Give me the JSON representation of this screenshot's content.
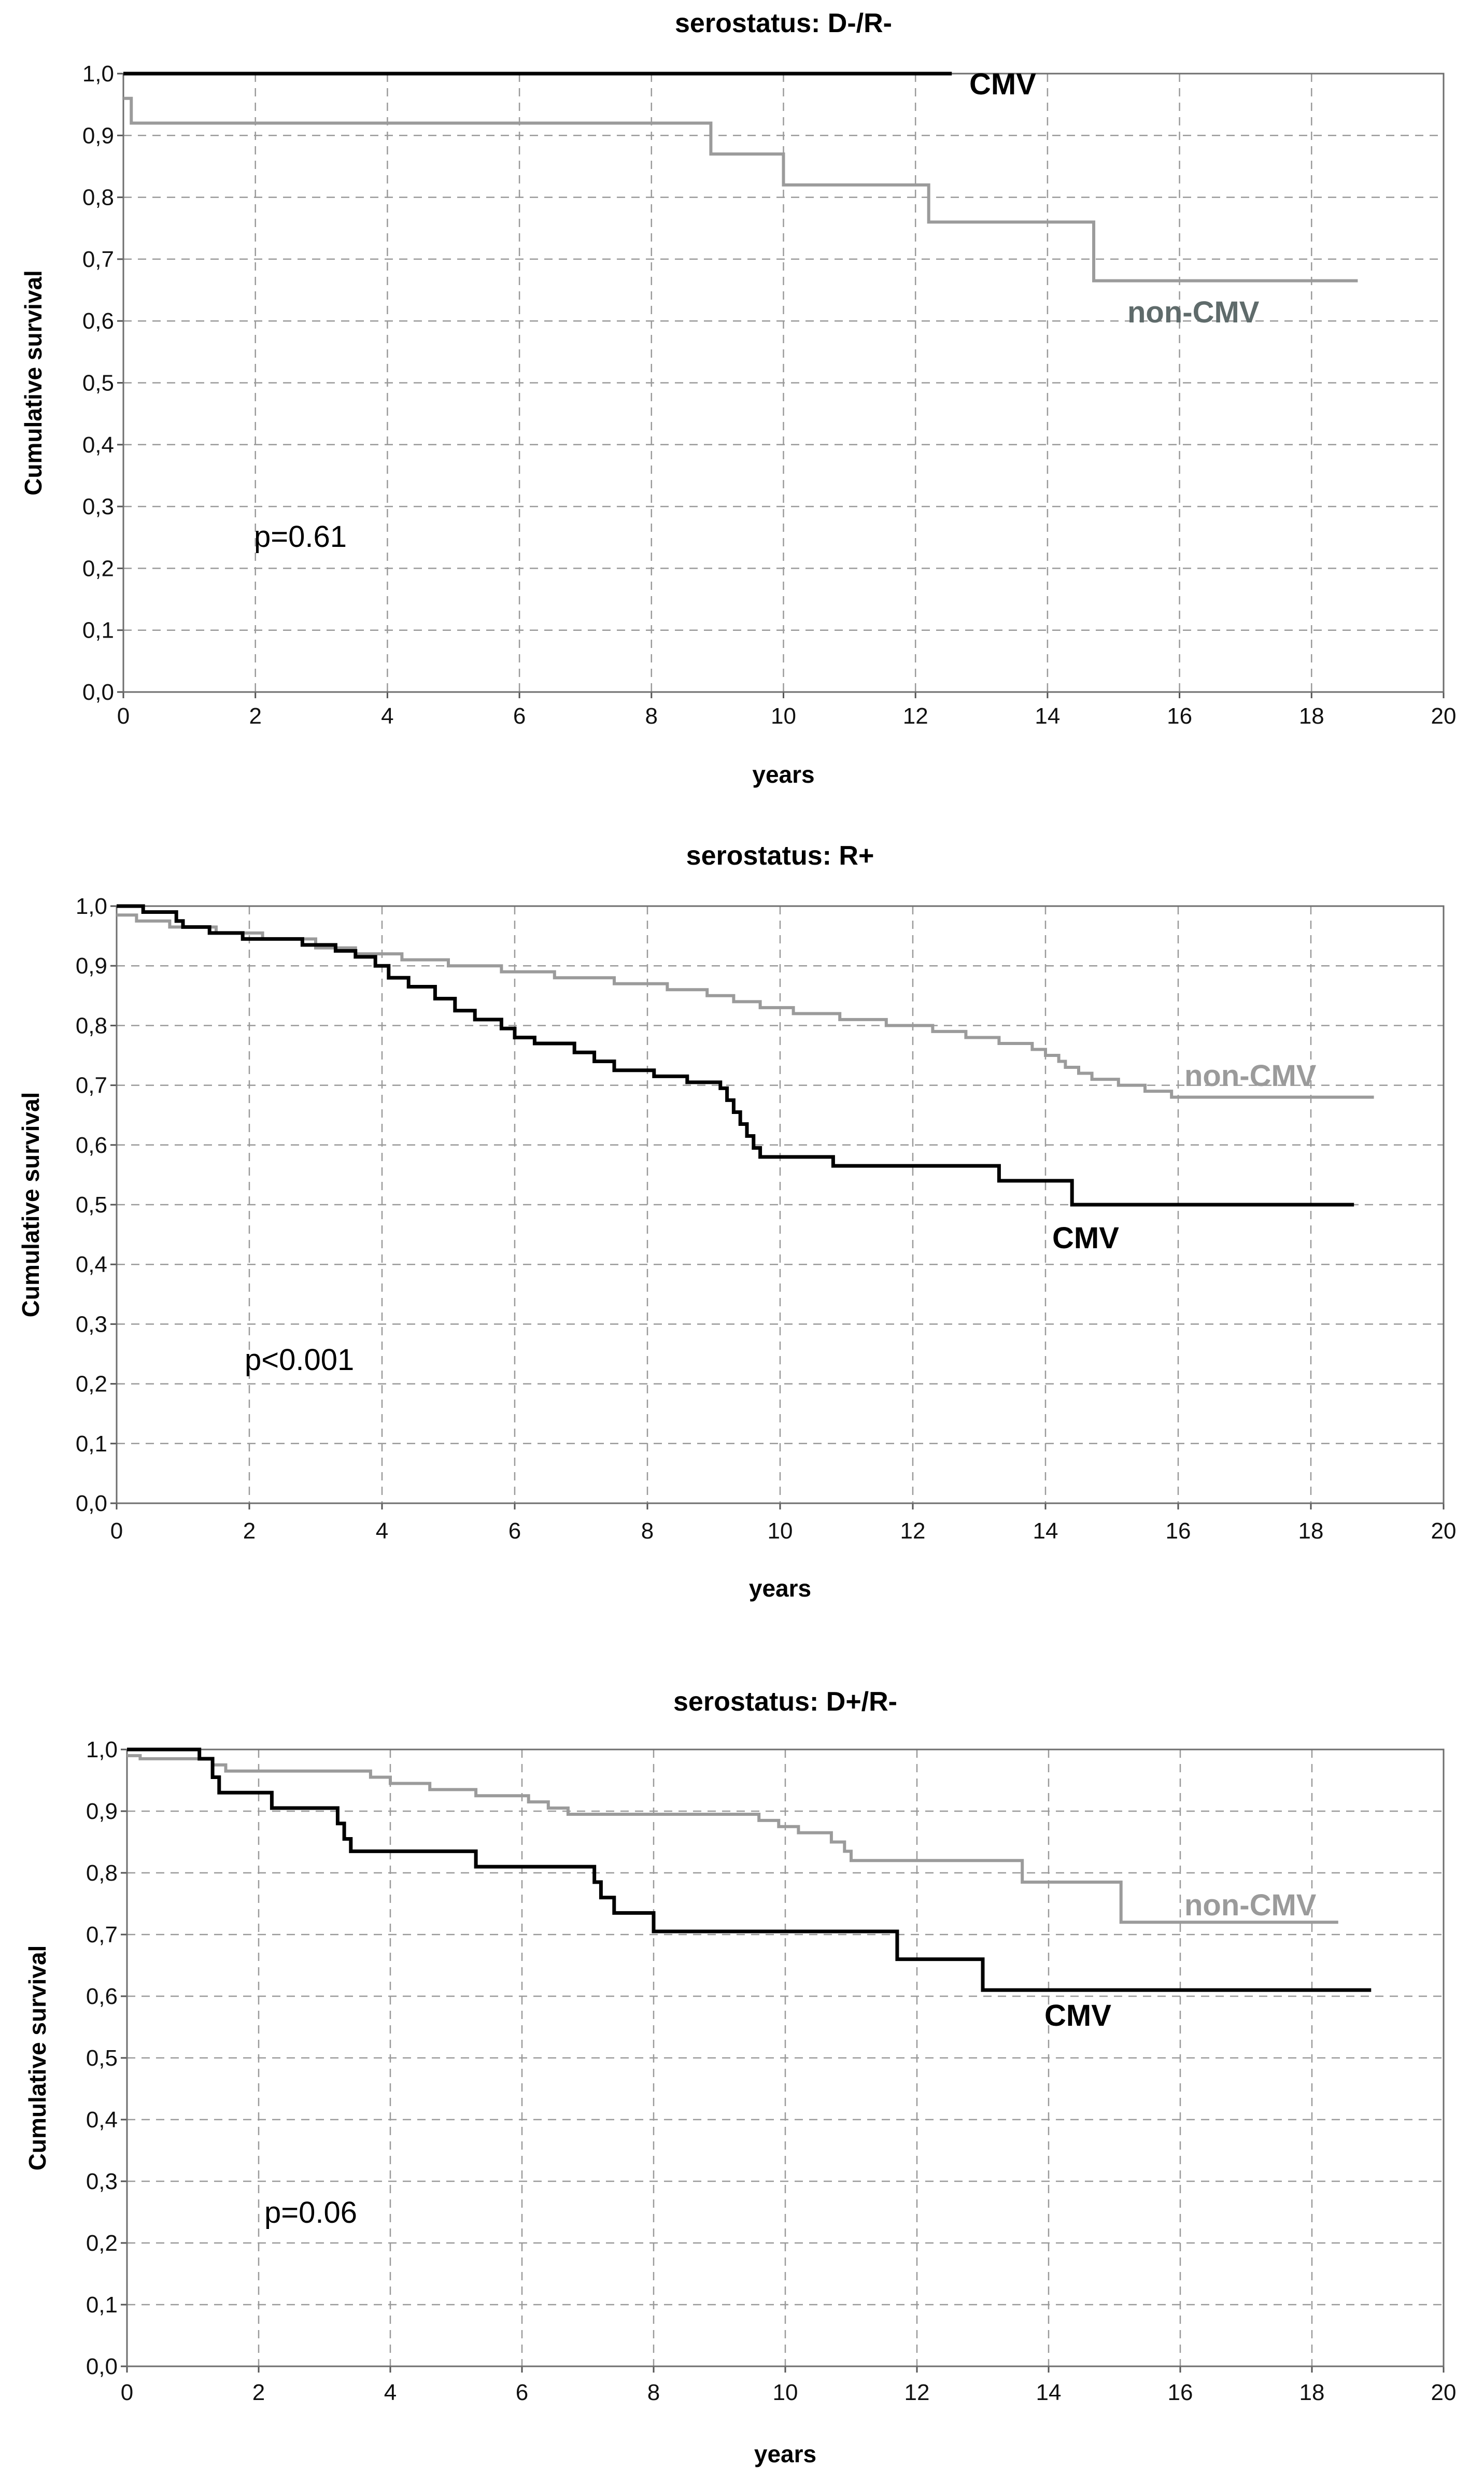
{
  "colors": {
    "cmv": "#000000",
    "non_cmv": "#9b9b9b",
    "non_cmv_label": "#5f6b6b"
  },
  "chart_data": [
    {
      "type": "line",
      "title": "serostatus: D-/R-",
      "xlabel": "years",
      "ylabel": "Cumulative survival",
      "xlim": [
        0,
        20
      ],
      "ylim": [
        0,
        1
      ],
      "x_ticks": [
        "0",
        "2",
        "4",
        "6",
        "8",
        "10",
        "12",
        "14",
        "16",
        "18",
        "20"
      ],
      "y_ticks": [
        "0,0",
        "0,1",
        "0,2",
        "0,3",
        "0,4",
        "0,5",
        "0,6",
        "0,7",
        "0,8",
        "0,9",
        "1,0"
      ],
      "annotation": "p=0.61",
      "series": [
        {
          "name": "CMV",
          "key": "cmv",
          "steps": [
            [
              0,
              1.0
            ],
            [
              12.55,
              1.0
            ]
          ]
        },
        {
          "name": "non-CMV",
          "key": "non_cmv",
          "steps": [
            [
              0,
              0.96
            ],
            [
              0.12,
              0.92
            ],
            [
              8.9,
              0.87
            ],
            [
              10.0,
              0.82
            ],
            [
              12.2,
              0.76
            ],
            [
              14.7,
              0.665
            ],
            [
              18.7,
              0.665
            ]
          ]
        }
      ]
    },
    {
      "type": "line",
      "title": "serostatus: R+",
      "xlabel": "years",
      "ylabel": "Cumulative survival",
      "xlim": [
        0,
        20
      ],
      "ylim": [
        0,
        1
      ],
      "x_ticks": [
        "0",
        "2",
        "4",
        "6",
        "8",
        "10",
        "12",
        "14",
        "16",
        "18",
        "20"
      ],
      "y_ticks": [
        "0,0",
        "0,1",
        "0,2",
        "0,3",
        "0,4",
        "0,5",
        "0,6",
        "0,7",
        "0,8",
        "0,9",
        "1,0"
      ],
      "annotation": "p<0.001",
      "series": [
        {
          "name": "non-CMV",
          "key": "non_cmv",
          "steps": [
            [
              0,
              0.985
            ],
            [
              0.3,
              0.975
            ],
            [
              0.8,
              0.965
            ],
            [
              1.5,
              0.955
            ],
            [
              2.2,
              0.945
            ],
            [
              3.0,
              0.93
            ],
            [
              3.6,
              0.92
            ],
            [
              4.3,
              0.91
            ],
            [
              5.0,
              0.9
            ],
            [
              5.8,
              0.89
            ],
            [
              6.6,
              0.88
            ],
            [
              7.5,
              0.87
            ],
            [
              8.3,
              0.86
            ],
            [
              8.9,
              0.85
            ],
            [
              9.3,
              0.84
            ],
            [
              9.7,
              0.83
            ],
            [
              10.2,
              0.82
            ],
            [
              10.9,
              0.81
            ],
            [
              11.6,
              0.8
            ],
            [
              12.3,
              0.79
            ],
            [
              12.8,
              0.78
            ],
            [
              13.3,
              0.77
            ],
            [
              13.8,
              0.76
            ],
            [
              14.0,
              0.75
            ],
            [
              14.2,
              0.74
            ],
            [
              14.3,
              0.73
            ],
            [
              14.5,
              0.72
            ],
            [
              14.7,
              0.71
            ],
            [
              15.1,
              0.7
            ],
            [
              15.5,
              0.69
            ],
            [
              15.9,
              0.68
            ],
            [
              18.95,
              0.68
            ]
          ]
        },
        {
          "name": "CMV",
          "key": "cmv",
          "steps": [
            [
              0,
              1.0
            ],
            [
              0.4,
              0.99
            ],
            [
              0.9,
              0.975
            ],
            [
              1.0,
              0.965
            ],
            [
              1.4,
              0.955
            ],
            [
              1.9,
              0.945
            ],
            [
              2.8,
              0.935
            ],
            [
              3.3,
              0.925
            ],
            [
              3.6,
              0.915
            ],
            [
              3.9,
              0.9
            ],
            [
              4.1,
              0.88
            ],
            [
              4.4,
              0.865
            ],
            [
              4.8,
              0.845
            ],
            [
              5.1,
              0.825
            ],
            [
              5.4,
              0.81
            ],
            [
              5.8,
              0.795
            ],
            [
              6.0,
              0.78
            ],
            [
              6.3,
              0.77
            ],
            [
              6.9,
              0.755
            ],
            [
              7.2,
              0.74
            ],
            [
              7.5,
              0.725
            ],
            [
              8.1,
              0.715
            ],
            [
              8.6,
              0.705
            ],
            [
              9.1,
              0.695
            ],
            [
              9.2,
              0.675
            ],
            [
              9.3,
              0.655
            ],
            [
              9.4,
              0.635
            ],
            [
              9.5,
              0.615
            ],
            [
              9.6,
              0.595
            ],
            [
              9.7,
              0.58
            ],
            [
              10.8,
              0.565
            ],
            [
              13.3,
              0.54
            ],
            [
              14.4,
              0.5
            ],
            [
              18.65,
              0.5
            ]
          ]
        }
      ]
    },
    {
      "type": "line",
      "title": "serostatus: D+/R-",
      "xlabel": "years",
      "ylabel": "Cumulative survival",
      "xlim": [
        0,
        20
      ],
      "ylim": [
        0,
        1
      ],
      "x_ticks": [
        "0",
        "2",
        "4",
        "6",
        "8",
        "10",
        "12",
        "14",
        "16",
        "18",
        "20"
      ],
      "y_ticks": [
        "0,0",
        "0,1",
        "0,2",
        "0,3",
        "0,4",
        "0,5",
        "0,6",
        "0,7",
        "0,8",
        "0,9",
        "1,0"
      ],
      "annotation": "p=0.06",
      "series": [
        {
          "name": "non-CMV",
          "key": "non_cmv",
          "steps": [
            [
              0,
              0.99
            ],
            [
              0.2,
              0.985
            ],
            [
              1.3,
              0.975
            ],
            [
              1.5,
              0.965
            ],
            [
              3.7,
              0.955
            ],
            [
              4.0,
              0.945
            ],
            [
              4.6,
              0.935
            ],
            [
              5.3,
              0.925
            ],
            [
              6.1,
              0.915
            ],
            [
              6.4,
              0.905
            ],
            [
              6.7,
              0.895
            ],
            [
              9.6,
              0.885
            ],
            [
              9.9,
              0.875
            ],
            [
              10.2,
              0.865
            ],
            [
              10.7,
              0.85
            ],
            [
              10.9,
              0.835
            ],
            [
              11.0,
              0.82
            ],
            [
              13.6,
              0.785
            ],
            [
              15.1,
              0.72
            ],
            [
              18.4,
              0.72
            ]
          ]
        },
        {
          "name": "CMV",
          "key": "cmv",
          "steps": [
            [
              0,
              1.0
            ],
            [
              1.1,
              0.985
            ],
            [
              1.3,
              0.955
            ],
            [
              1.4,
              0.93
            ],
            [
              2.2,
              0.905
            ],
            [
              3.2,
              0.88
            ],
            [
              3.3,
              0.855
            ],
            [
              3.4,
              0.835
            ],
            [
              5.3,
              0.81
            ],
            [
              7.1,
              0.785
            ],
            [
              7.2,
              0.76
            ],
            [
              7.4,
              0.735
            ],
            [
              8.0,
              0.705
            ],
            [
              11.7,
              0.66
            ],
            [
              13.0,
              0.61
            ],
            [
              18.9,
              0.61
            ]
          ]
        }
      ]
    }
  ],
  "labels": {
    "panel1": {
      "cmv": "CMV",
      "non_cmv": "non-CMV"
    },
    "panel2": {
      "cmv": "CMV",
      "non_cmv": "non-CMV"
    },
    "panel3": {
      "cmv": "CMV",
      "non_cmv": "non-CMV"
    }
  }
}
